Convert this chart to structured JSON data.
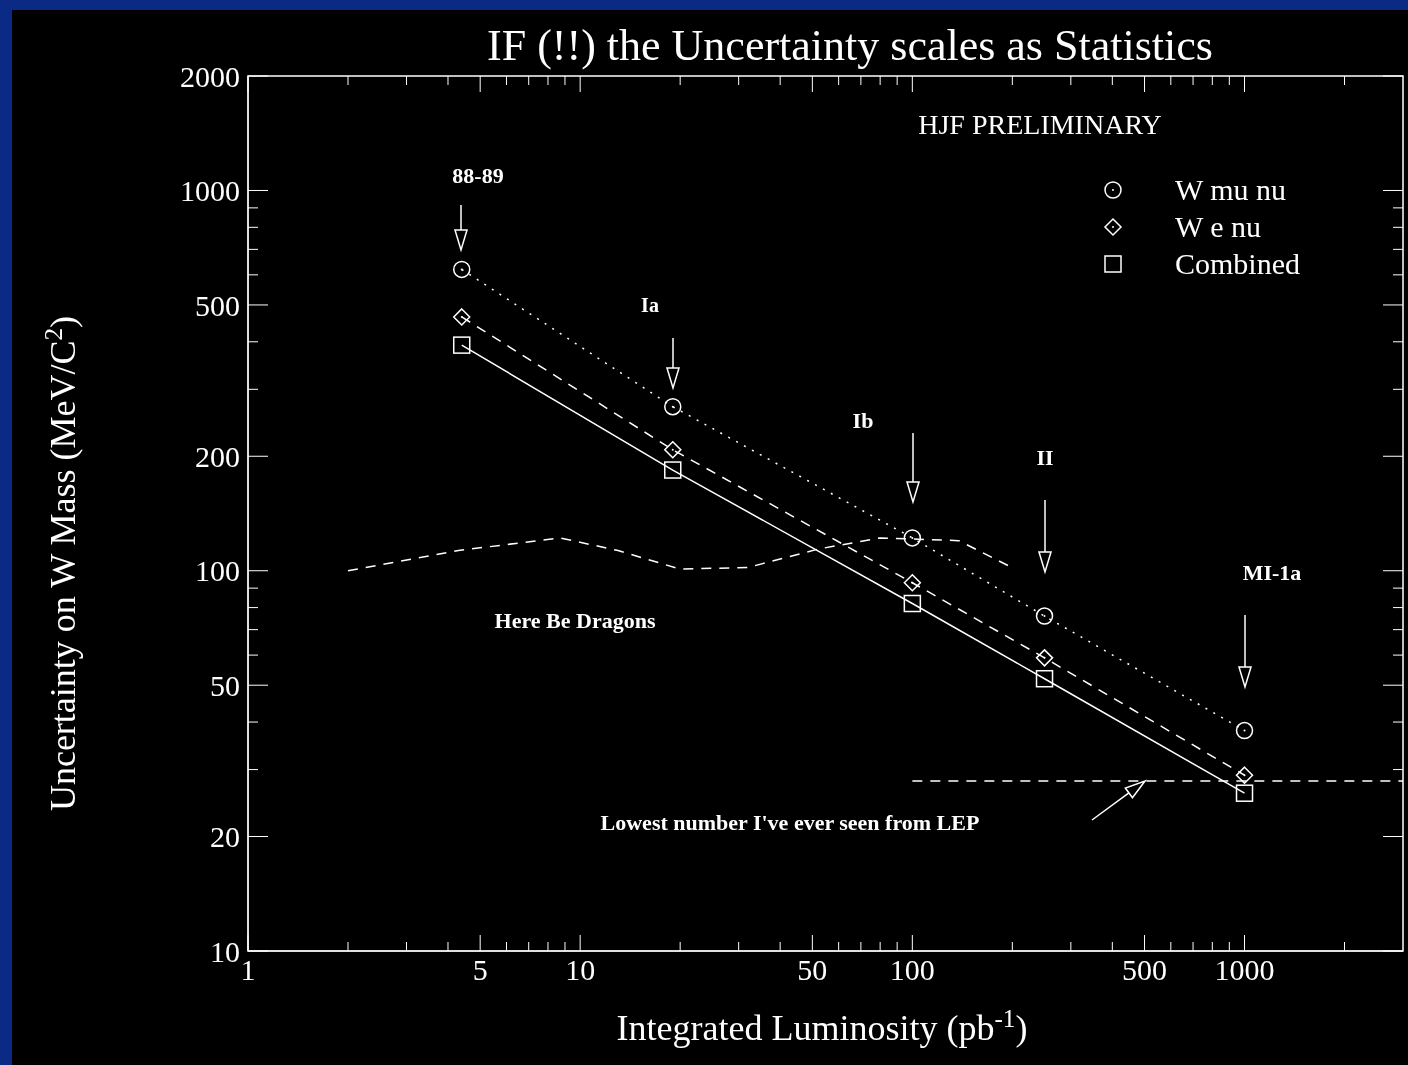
{
  "chart_data": {
    "type": "line",
    "title": "IF (!!) the Uncertainty scales as Statistics",
    "xlabel": "Integrated Luminosity (pb$^{-1}$)",
    "ylabel": "Uncertainty on W Mass (MeV/C$^{2}$)",
    "log": "xy",
    "legend": "top right",
    "xlim": [
      1,
      3000
    ],
    "ylim": [
      10,
      2000
    ],
    "xticks": [
      1,
      {
        "value": 2,
        "label": null
      },
      {
        "value": 3,
        "label": null
      },
      {
        "value": 4,
        "label": null
      },
      5,
      {
        "value": 6,
        "label": null
      },
      {
        "value": 7,
        "label": null
      },
      {
        "value": 8,
        "label": null
      },
      {
        "value": 9,
        "label": null
      },
      10,
      {
        "value": 20,
        "label": null
      },
      {
        "value": 30,
        "label": null
      },
      {
        "value": 40,
        "label": null
      },
      50,
      {
        "value": 60,
        "label": null
      },
      {
        "value": 70,
        "label": null
      },
      {
        "value": 80,
        "label": null
      },
      {
        "value": 90,
        "label": null
      },
      100,
      {
        "value": 200,
        "label": null
      },
      {
        "value": 300,
        "label": null
      },
      {
        "value": 400,
        "label": null
      },
      500,
      {
        "value": 600,
        "label": null
      },
      {
        "value": 700,
        "label": null
      },
      {
        "value": 800,
        "label": null
      },
      {
        "value": 900,
        "label": null
      },
      1000,
      {
        "value": 2000,
        "label": null
      }
    ],
    "yticks": [
      10,
      20,
      {
        "value": 30,
        "label": null
      },
      {
        "value": 40,
        "label": null
      },
      50,
      {
        "value": 60,
        "label": null
      },
      {
        "value": 70,
        "label": null
      },
      {
        "value": 80,
        "label": null
      },
      {
        "value": 90,
        "label": null
      },
      100,
      200,
      {
        "value": 300,
        "label": null
      },
      {
        "value": 400,
        "label": null
      },
      500,
      {
        "value": 600,
        "label": null
      },
      {
        "value": 700,
        "label": null
      },
      {
        "value": 800,
        "label": null
      },
      {
        "value": 900,
        "label": null
      },
      1000,
      2000
    ],
    "series": [
      {
        "name": "W mu nu",
        "color": "#ffffff",
        "x": [
          4.4,
          19,
          100,
          250,
          1000
        ],
        "values": [
          620,
          270,
          122,
          76,
          38
        ],
        "marker": "circle",
        "line_style": "dotted"
      },
      {
        "name": "W e nu",
        "color": "#ffffff",
        "x": [
          4.4,
          19,
          100,
          250,
          1000
        ],
        "values": [
          465,
          208,
          93,
          59,
          29
        ],
        "marker": "diamond",
        "line_style": "dashed"
      },
      {
        "name": "Combined",
        "color": "#ffffff",
        "x": [
          4.4,
          19,
          100,
          250,
          1000
        ],
        "values": [
          392,
          184,
          82,
          52,
          26
        ],
        "marker": "square",
        "line_style": "solid"
      },
      {
        "color": "#ffffff",
        "x": [
          2,
          4.3,
          8.7,
          13,
          20,
          32,
          52,
          80,
          138,
          195
        ],
        "values": [
          100,
          113,
          122,
          113,
          101,
          102,
          114,
          122,
          120,
          103
        ],
        "marker": "none",
        "line_style": "dashed"
      },
      {
        "color": "#ffffff",
        "x": [
          100,
          3000
        ],
        "values": [
          28,
          28
        ],
        "marker": "none",
        "line_style": "dashed"
      }
    ],
    "annotations": [
      "HJF PRELIMINARY",
      "88-89",
      "Ia",
      "Ib",
      "II",
      "MI-1a",
      "Here Be Dragons",
      "Lowest number I've ever seen from LEP"
    ]
  }
}
